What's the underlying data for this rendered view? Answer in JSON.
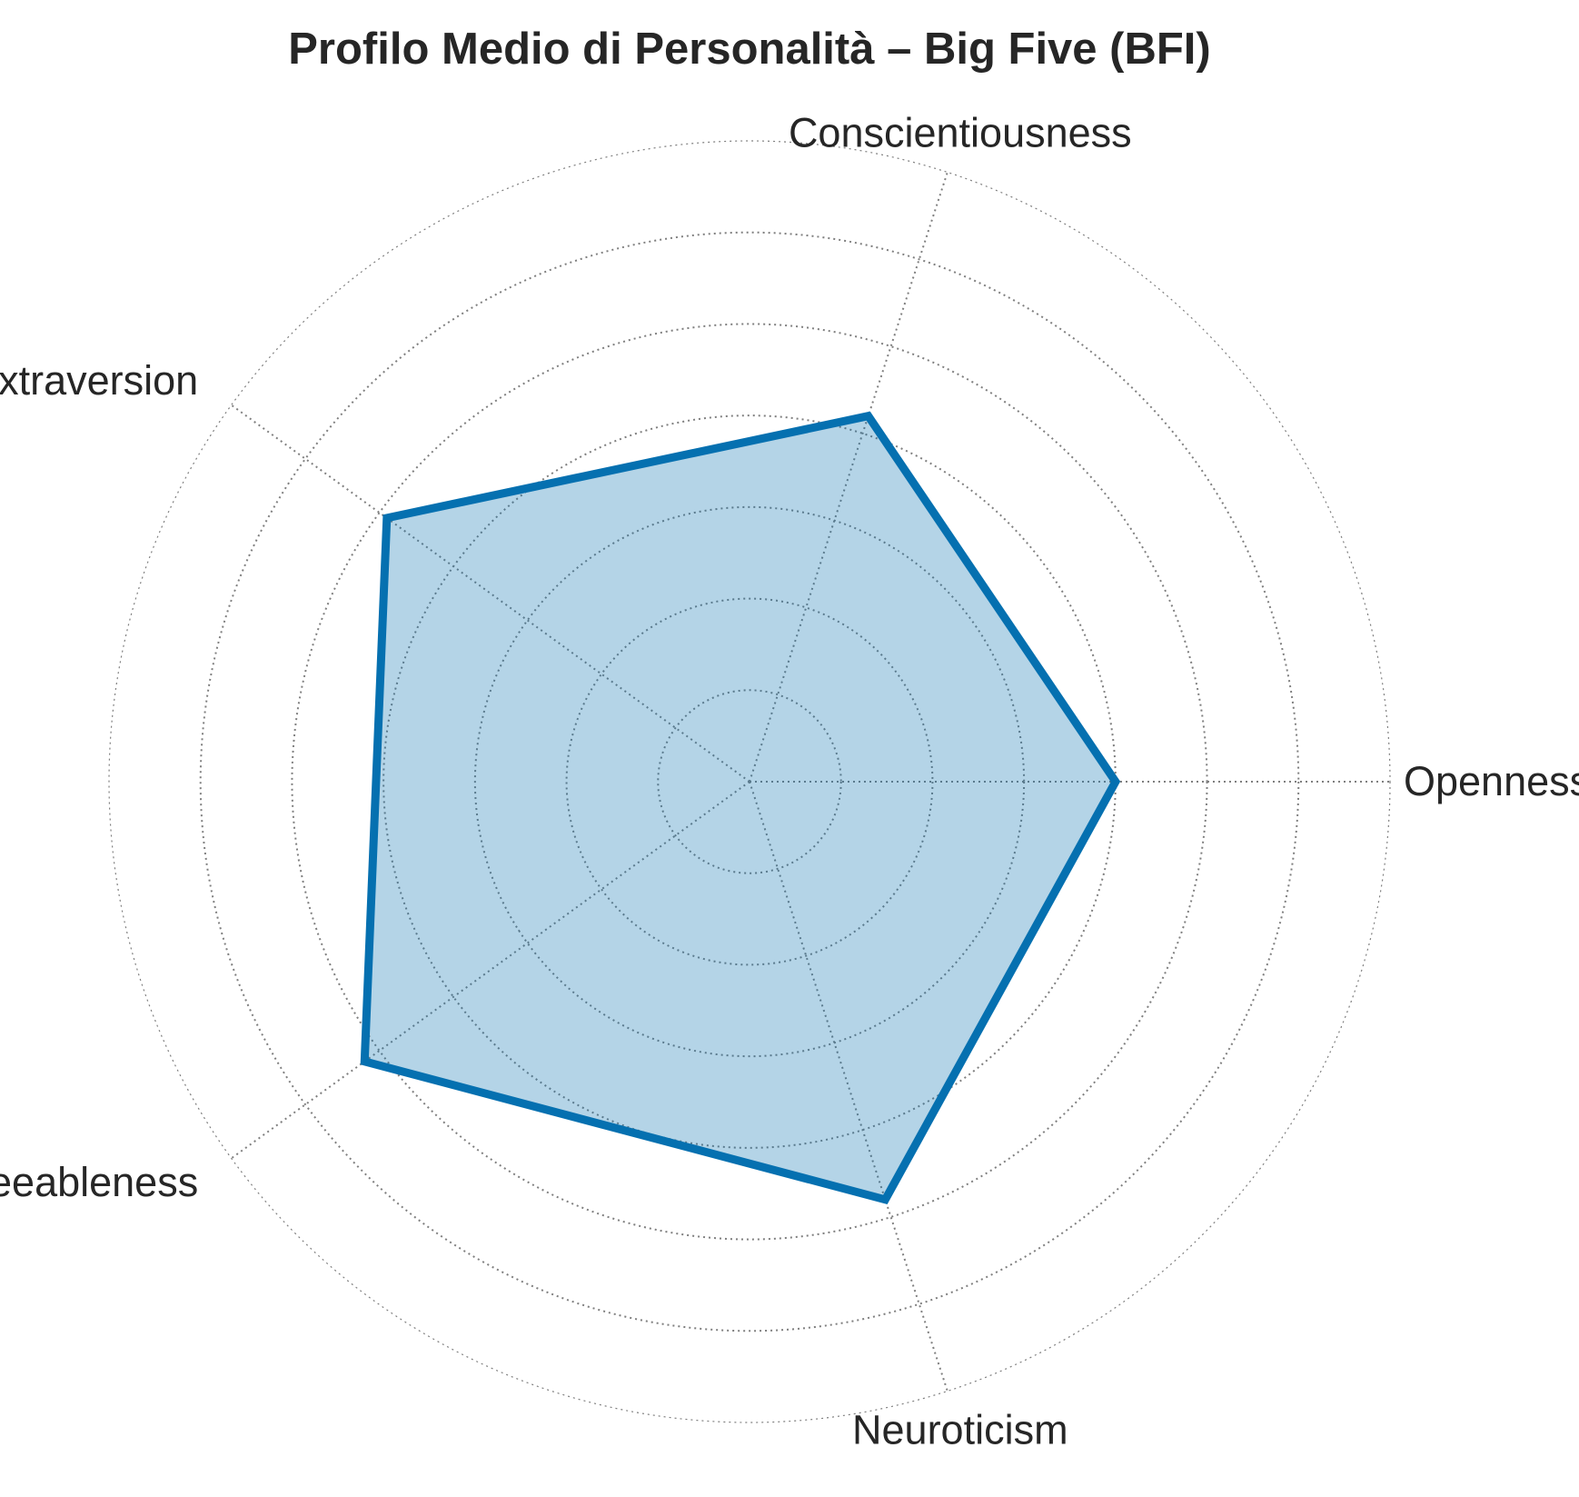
{
  "chart_data": {
    "type": "radar",
    "title": "Profilo Medio di Personalità – Big Five (BFI)",
    "categories": [
      "Openness",
      "Conscientiousness",
      "Extraversion",
      "Agreeableness",
      "Neuroticism"
    ],
    "series": [
      {
        "values": [
          4.0,
          4.2,
          4.9,
          5.2,
          4.8
        ]
      }
    ],
    "rlim": [
      0,
      7
    ],
    "r_gridlines": [
      1,
      2,
      3,
      4,
      5,
      6,
      7
    ],
    "grid": true,
    "line_color": "#0570b0",
    "fill_color": "#0570b0",
    "fill_opacity": 0.3,
    "grid_color": "#7f7f7f"
  }
}
